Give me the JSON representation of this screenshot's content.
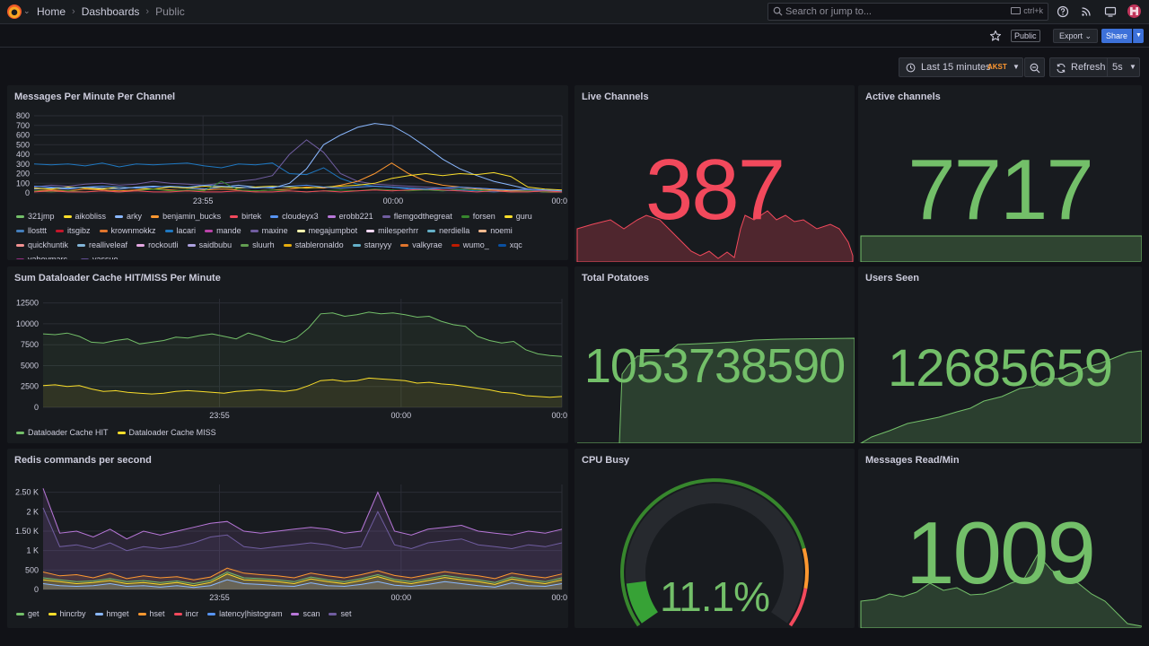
{
  "breadcrumb": {
    "home": "Home",
    "dashboards": "Dashboards",
    "current": "Public"
  },
  "search": {
    "placeholder": "Search or jump to...",
    "shortcut": "ctrl+k"
  },
  "toolbar": {
    "public_label": "Public",
    "export_label": "Export",
    "share_label": "Share"
  },
  "time": {
    "range_label": "Last 15 minutes",
    "timezone": "AKST",
    "refresh_label": "Refresh",
    "interval": "5s"
  },
  "colors": {
    "green": "#73bf69",
    "red": "#f2495c",
    "yellow": "#fade2a",
    "purple": "#b877d9",
    "orange": "#ff9830",
    "blue": "#5794f2"
  },
  "panels": {
    "messages": {
      "title": "Messages Per Minute Per Channel",
      "legend": [
        {
          "name": "321jmp",
          "color": "#73bf69"
        },
        {
          "name": "aikobliss",
          "color": "#fade2a"
        },
        {
          "name": "arky",
          "color": "#8ab8ff"
        },
        {
          "name": "benjamin_bucks",
          "color": "#ff9830"
        },
        {
          "name": "birtek",
          "color": "#f2495c"
        },
        {
          "name": "cloudeyx3",
          "color": "#5794f2"
        },
        {
          "name": "erobb221",
          "color": "#b877d9"
        },
        {
          "name": "flemgodthegreat",
          "color": "#705da0"
        },
        {
          "name": "forsen",
          "color": "#37872d"
        },
        {
          "name": "guru",
          "color": "#fade2a"
        },
        {
          "name": "llosttt",
          "color": "#447ebc"
        },
        {
          "name": "itsgibz",
          "color": "#c4162a"
        },
        {
          "name": "krownmokkz",
          "color": "#e0752d"
        },
        {
          "name": "lacari",
          "color": "#1f78c1"
        },
        {
          "name": "mande",
          "color": "#ba43a9"
        },
        {
          "name": "maxine",
          "color": "#705da0"
        },
        {
          "name": "megajumpbot",
          "color": "#fffeb0"
        },
        {
          "name": "milesperhrr",
          "color": "#f9d9f9"
        },
        {
          "name": "nerdiella",
          "color": "#64b0c8"
        },
        {
          "name": "noemi",
          "color": "#f9ba8f"
        },
        {
          "name": "quickhuntik",
          "color": "#f29191"
        },
        {
          "name": "realliveleaf",
          "color": "#82b5d8"
        },
        {
          "name": "rockoutli",
          "color": "#e5a8e2"
        },
        {
          "name": "saidbubu",
          "color": "#aea2e0"
        },
        {
          "name": "sluurh",
          "color": "#629e51"
        },
        {
          "name": "stableronaldo",
          "color": "#e5ac0e"
        },
        {
          "name": "stanyyy",
          "color": "#64b0c8"
        },
        {
          "name": "valkyrae",
          "color": "#e0752d"
        },
        {
          "name": "wumo_",
          "color": "#bf1b00"
        },
        {
          "name": "xqc",
          "color": "#0a50a1"
        },
        {
          "name": "yaboymarc_",
          "color": "#962d82"
        },
        {
          "name": "yassuo",
          "color": "#614d93"
        }
      ]
    },
    "live_channels": {
      "title": "Live Channels",
      "value": "387"
    },
    "active_channels": {
      "title": "Active channels",
      "value": "7717"
    },
    "dataloader": {
      "title": "Sum Dataloader Cache HIT/MISS Per Minute",
      "legend": [
        {
          "name": "Dataloader Cache HIT",
          "color": "#73bf69"
        },
        {
          "name": "Dataloader Cache MISS",
          "color": "#fade2a"
        }
      ]
    },
    "total_potatoes": {
      "title": "Total Potatoes",
      "value": "1053738590"
    },
    "users_seen": {
      "title": "Users Seen",
      "value": "12685659"
    },
    "redis": {
      "title": "Redis commands per second",
      "legend": [
        {
          "name": "get",
          "color": "#73bf69"
        },
        {
          "name": "hincrby",
          "color": "#fade2a"
        },
        {
          "name": "hmget",
          "color": "#8ab8ff"
        },
        {
          "name": "hset",
          "color": "#ff9830"
        },
        {
          "name": "incr",
          "color": "#f2495c"
        },
        {
          "name": "latency|histogram",
          "color": "#5794f2"
        },
        {
          "name": "scan",
          "color": "#b877d9"
        },
        {
          "name": "set",
          "color": "#705da0"
        }
      ]
    },
    "cpu_busy": {
      "title": "CPU Busy",
      "value": "11.1%",
      "percent": 11.1
    },
    "messages_read": {
      "title": "Messages Read/Min",
      "value": "1009"
    }
  },
  "chart_data": [
    {
      "type": "line",
      "title": "Messages Per Minute Per Channel",
      "ylim": [
        0,
        800
      ],
      "yticks": [
        "800",
        "700",
        "600",
        "500",
        "400",
        "300",
        "200",
        "100",
        "0"
      ],
      "xticks": [
        "23:55",
        "00:00",
        "00:0"
      ],
      "series": [
        {
          "name": "lacari",
          "color": "#1f78c1",
          "values": [
            300,
            290,
            300,
            280,
            310,
            270,
            300,
            290,
            300,
            310,
            280,
            260,
            300,
            290,
            310,
            200,
            190,
            260,
            150,
            90,
            70,
            60,
            40,
            30,
            20,
            30,
            20,
            10,
            20,
            20,
            10,
            15
          ]
        },
        {
          "name": "arky",
          "color": "#8ab8ff",
          "values": [
            40,
            50,
            40,
            60,
            50,
            40,
            60,
            70,
            60,
            50,
            40,
            60,
            80,
            60,
            50,
            100,
            250,
            500,
            600,
            680,
            720,
            700,
            600,
            480,
            350,
            250,
            180,
            120,
            80,
            40,
            30,
            20
          ]
        },
        {
          "name": "flemgodthegreat",
          "color": "#705da0",
          "values": [
            60,
            80,
            70,
            90,
            100,
            80,
            90,
            120,
            100,
            90,
            80,
            100,
            120,
            140,
            180,
            400,
            550,
            420,
            200,
            120,
            90,
            80,
            70,
            60,
            50,
            40,
            50,
            40,
            30,
            30,
            20,
            20
          ]
        },
        {
          "name": "benjamin_bucks",
          "color": "#ff9830",
          "values": [
            20,
            30,
            20,
            40,
            30,
            20,
            30,
            40,
            30,
            20,
            30,
            40,
            30,
            20,
            30,
            40,
            60,
            50,
            80,
            120,
            200,
            310,
            200,
            120,
            80,
            60,
            40,
            30,
            20,
            20,
            10,
            10
          ]
        },
        {
          "name": "guru",
          "color": "#fade2a",
          "values": [
            50,
            40,
            60,
            50,
            40,
            60,
            50,
            40,
            60,
            50,
            70,
            60,
            50,
            60,
            70,
            60,
            50,
            60,
            70,
            80,
            100,
            150,
            180,
            200,
            180,
            200,
            190,
            210,
            170,
            60,
            40,
            30
          ]
        },
        {
          "name": "forsen",
          "color": "#37872d",
          "values": [
            20,
            10,
            20,
            10,
            20,
            10,
            20,
            40,
            20,
            30,
            20,
            120,
            30,
            20,
            30,
            20,
            10,
            20,
            30,
            20,
            40,
            30,
            20,
            30,
            20,
            40,
            30,
            20,
            10,
            20,
            10,
            20
          ]
        },
        {
          "name": "birtek",
          "color": "#f2495c",
          "values": [
            10,
            20,
            10,
            10,
            20,
            10,
            20,
            10,
            10,
            20,
            10,
            10,
            20,
            10,
            10,
            20,
            10,
            20,
            10,
            20,
            30,
            20,
            30,
            40,
            30,
            20,
            10,
            20,
            10,
            10,
            20,
            10
          ]
        },
        {
          "name": "cloudeyx3",
          "color": "#5794f2",
          "values": [
            70,
            60,
            50,
            60,
            70,
            60,
            50,
            60,
            70,
            60,
            80,
            70,
            60,
            50,
            60,
            70,
            80,
            60,
            50,
            60,
            70,
            60,
            50,
            40,
            50,
            60,
            50,
            40,
            30,
            40,
            30,
            20
          ]
        }
      ]
    },
    {
      "type": "area",
      "title": "Sum Dataloader Cache HIT/MISS Per Minute",
      "ylim": [
        0,
        13000
      ],
      "yticks": [
        "12500",
        "10000",
        "7500",
        "5000",
        "2500",
        "0"
      ],
      "xticks": [
        "23:55",
        "00:00",
        "00:0"
      ],
      "series": [
        {
          "name": "Dataloader Cache HIT",
          "color": "#73bf69",
          "values": [
            8800,
            8700,
            8900,
            8500,
            7800,
            7700,
            8000,
            8200,
            7600,
            7800,
            8000,
            8400,
            8300,
            8600,
            8800,
            8500,
            8200,
            8900,
            8500,
            8000,
            7800,
            8300,
            9500,
            11200,
            11300,
            10900,
            11100,
            11400,
            11200,
            11300,
            11100,
            10800,
            10900,
            10300,
            9900,
            9700,
            8500,
            8000,
            7700,
            7900,
            6900,
            6400,
            6200,
            6100
          ]
        },
        {
          "name": "Dataloader Cache MISS",
          "color": "#fade2a",
          "values": [
            2600,
            2700,
            2500,
            2600,
            2200,
            1900,
            2000,
            1800,
            1700,
            1600,
            1700,
            1900,
            2000,
            1900,
            1800,
            1700,
            1900,
            2000,
            2100,
            2000,
            1900,
            2100,
            2600,
            3200,
            3300,
            3100,
            3200,
            3500,
            3400,
            3300,
            3200,
            2900,
            3000,
            2800,
            2700,
            2500,
            2300,
            2100,
            1800,
            1700,
            1400,
            1300,
            1200,
            1300
          ]
        }
      ]
    },
    {
      "type": "area",
      "title": "Redis commands per second",
      "ylim": [
        0,
        2700
      ],
      "yticks": [
        "2.50 K",
        "2 K",
        "1.50 K",
        "1 K",
        "500",
        "0"
      ],
      "xticks": [
        "23:55",
        "00:00",
        "00:0"
      ],
      "series": [
        {
          "name": "scan",
          "color": "#b877d9",
          "values": [
            2600,
            1450,
            1500,
            1350,
            1550,
            1300,
            1500,
            1400,
            1500,
            1600,
            1700,
            1750,
            1500,
            1450,
            1500,
            1550,
            1600,
            1550,
            1450,
            1500,
            2500,
            1500,
            1400,
            1550,
            1600,
            1650,
            1500,
            1450,
            1400,
            1500,
            1450,
            1550
          ]
        },
        {
          "name": "set",
          "color": "#705da0",
          "values": [
            2100,
            1100,
            1150,
            1050,
            1200,
            1000,
            1100,
            1050,
            1100,
            1200,
            1350,
            1400,
            1100,
            1050,
            1100,
            1150,
            1200,
            1150,
            1050,
            1100,
            2000,
            1150,
            1050,
            1200,
            1250,
            1300,
            1150,
            1100,
            1050,
            1150,
            1100,
            1200
          ]
        },
        {
          "name": "hset",
          "color": "#ff9830",
          "values": [
            450,
            350,
            380,
            300,
            420,
            280,
            350,
            300,
            330,
            250,
            320,
            550,
            420,
            380,
            350,
            300,
            420,
            350,
            300,
            380,
            480,
            360,
            300,
            380,
            460,
            400,
            350,
            280,
            420,
            350,
            300,
            400
          ]
        },
        {
          "name": "get",
          "color": "#73bf69",
          "values": [
            300,
            250,
            200,
            220,
            280,
            200,
            230,
            180,
            220,
            150,
            230,
            450,
            300,
            280,
            250,
            200,
            320,
            250,
            200,
            280,
            380,
            260,
            200,
            280,
            360,
            300,
            250,
            180,
            320,
            250,
            200,
            300
          ]
        },
        {
          "name": "hincrby",
          "color": "#fade2a",
          "values": [
            250,
            200,
            150,
            180,
            230,
            150,
            180,
            130,
            180,
            100,
            180,
            400,
            250,
            230,
            200,
            150,
            270,
            200,
            150,
            230,
            330,
            210,
            150,
            230,
            310,
            250,
            200,
            130,
            270,
            200,
            150,
            250
          ]
        },
        {
          "name": "hmget",
          "color": "#8ab8ff",
          "values": [
            150,
            100,
            80,
            100,
            150,
            80,
            100,
            60,
            100,
            50,
            100,
            250,
            150,
            130,
            100,
            80,
            170,
            100,
            80,
            130,
            200,
            110,
            80,
            130,
            200,
            150,
            100,
            60,
            170,
            100,
            80,
            150
          ]
        }
      ]
    }
  ]
}
